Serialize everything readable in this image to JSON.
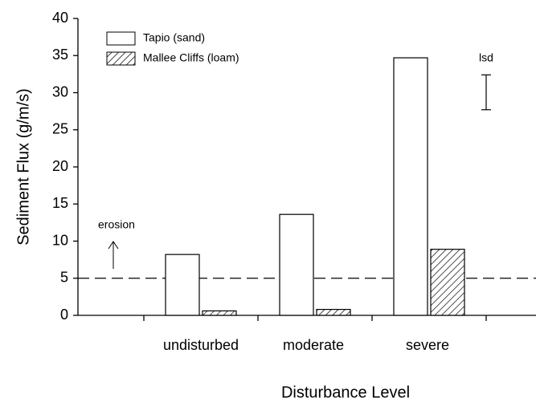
{
  "chart_data": {
    "type": "bar",
    "x_label": "Disturbance Level",
    "y_label": "Sediment Flux (g/m/s)",
    "categories": [
      "undisturbed",
      "moderate",
      "severe"
    ],
    "series": [
      {
        "name": "Tapio (sand)",
        "color": "#ffffff",
        "pattern": "none",
        "values": [
          8.2,
          13.6,
          34.7
        ]
      },
      {
        "name": "Mallee Cliffs (loam)",
        "color": "#ffffff",
        "pattern": "hatch",
        "values": [
          0.6,
          0.8,
          8.9
        ]
      }
    ],
    "ylim": [
      0,
      40
    ],
    "yticks": [
      0,
      5,
      10,
      15,
      20,
      25,
      30,
      35,
      40
    ],
    "reference_line": 5,
    "annotation": "erosion",
    "lsd": {
      "label": "lsd",
      "low": 27.7,
      "high": 32.4
    },
    "legend": "top-left"
  }
}
